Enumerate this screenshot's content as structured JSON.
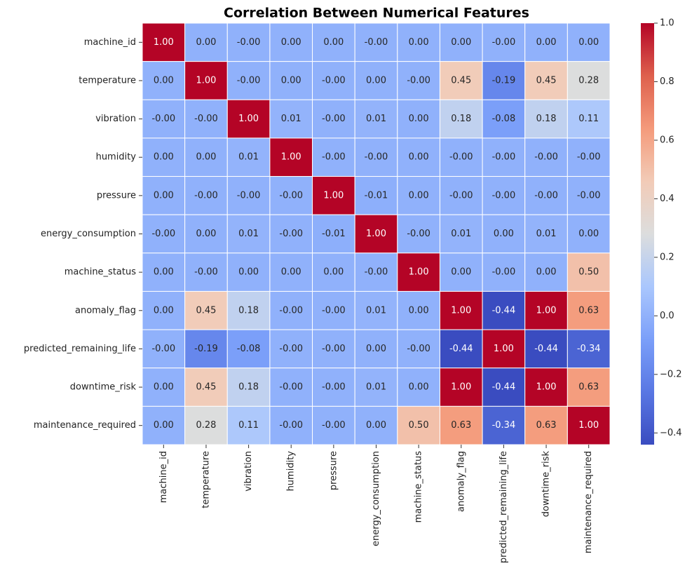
{
  "chart_data": {
    "type": "heatmap",
    "title": "Correlation Between Numerical Features",
    "categories": [
      "machine_id",
      "temperature",
      "vibration",
      "humidity",
      "pressure",
      "energy_consumption",
      "machine_status",
      "anomaly_flag",
      "predicted_remaining_life",
      "downtime_risk",
      "maintenance_required"
    ],
    "values": [
      [
        1,
        0,
        0,
        0,
        0,
        0,
        0,
        0,
        0,
        0,
        0
      ],
      [
        0,
        1,
        0,
        0,
        0,
        0,
        0,
        0.45,
        -0.19,
        0.45,
        0.28
      ],
      [
        0,
        0,
        1,
        0.01,
        0,
        0.01,
        0,
        0.18,
        -0.08,
        0.18,
        0.11
      ],
      [
        0,
        0,
        0.01,
        1,
        0,
        0,
        0,
        0,
        0,
        0,
        0
      ],
      [
        0,
        0,
        0,
        0,
        1,
        -0.01,
        0,
        0,
        0,
        0,
        0
      ],
      [
        0,
        0,
        0.01,
        0,
        -0.01,
        1,
        0,
        0.01,
        0,
        0.01,
        0
      ],
      [
        0,
        0,
        0,
        0,
        0,
        0,
        1,
        0,
        0,
        0,
        0.5
      ],
      [
        0,
        0.45,
        0.18,
        0,
        0,
        0.01,
        0,
        1,
        -0.44,
        1,
        0.63
      ],
      [
        0,
        -0.19,
        -0.08,
        0,
        0,
        0,
        0,
        -0.44,
        1,
        -0.44,
        -0.34
      ],
      [
        0,
        0.45,
        0.18,
        0,
        0,
        0.01,
        0,
        1,
        -0.44,
        1,
        0.63
      ],
      [
        0,
        0.28,
        0.11,
        0,
        0,
        0,
        0.5,
        0.63,
        -0.34,
        0.63,
        1
      ]
    ],
    "value_labels": [
      [
        "1.00",
        "0.00",
        "-0.00",
        "0.00",
        "0.00",
        "-0.00",
        "0.00",
        "0.00",
        "-0.00",
        "0.00",
        "0.00"
      ],
      [
        "0.00",
        "1.00",
        "-0.00",
        "0.00",
        "-0.00",
        "0.00",
        "-0.00",
        "0.45",
        "-0.19",
        "0.45",
        "0.28"
      ],
      [
        "-0.00",
        "-0.00",
        "1.00",
        "0.01",
        "-0.00",
        "0.01",
        "0.00",
        "0.18",
        "-0.08",
        "0.18",
        "0.11"
      ],
      [
        "0.00",
        "0.00",
        "0.01",
        "1.00",
        "-0.00",
        "-0.00",
        "0.00",
        "-0.00",
        "-0.00",
        "-0.00",
        "-0.00"
      ],
      [
        "0.00",
        "-0.00",
        "-0.00",
        "-0.00",
        "1.00",
        "-0.01",
        "0.00",
        "-0.00",
        "-0.00",
        "-0.00",
        "-0.00"
      ],
      [
        "-0.00",
        "0.00",
        "0.01",
        "-0.00",
        "-0.01",
        "1.00",
        "-0.00",
        "0.01",
        "0.00",
        "0.01",
        "0.00"
      ],
      [
        "0.00",
        "-0.00",
        "0.00",
        "0.00",
        "0.00",
        "-0.00",
        "1.00",
        "0.00",
        "-0.00",
        "0.00",
        "0.50"
      ],
      [
        "0.00",
        "0.45",
        "0.18",
        "-0.00",
        "-0.00",
        "0.01",
        "0.00",
        "1.00",
        "-0.44",
        "1.00",
        "0.63"
      ],
      [
        "-0.00",
        "-0.19",
        "-0.08",
        "-0.00",
        "-0.00",
        "0.00",
        "-0.00",
        "-0.44",
        "1.00",
        "-0.44",
        "-0.34"
      ],
      [
        "0.00",
        "0.45",
        "0.18",
        "-0.00",
        "-0.00",
        "0.01",
        "0.00",
        "1.00",
        "-0.44",
        "1.00",
        "0.63"
      ],
      [
        "0.00",
        "0.28",
        "0.11",
        "-0.00",
        "-0.00",
        "0.00",
        "0.50",
        "0.63",
        "-0.34",
        "0.63",
        "1.00"
      ]
    ],
    "colormap": "coolwarm",
    "clim": [
      -0.44,
      1.0
    ],
    "cticks": [
      {
        "value": -0.4,
        "label": "−0.4"
      },
      {
        "value": -0.2,
        "label": "−0.2"
      },
      {
        "value": 0,
        "label": "0.0"
      },
      {
        "value": 0.2,
        "label": "0.2"
      },
      {
        "value": 0.4,
        "label": "0.4"
      },
      {
        "value": 0.6,
        "label": "0.6"
      },
      {
        "value": 0.8,
        "label": "0.8"
      },
      {
        "value": 1.0,
        "label": "1.0"
      }
    ]
  }
}
